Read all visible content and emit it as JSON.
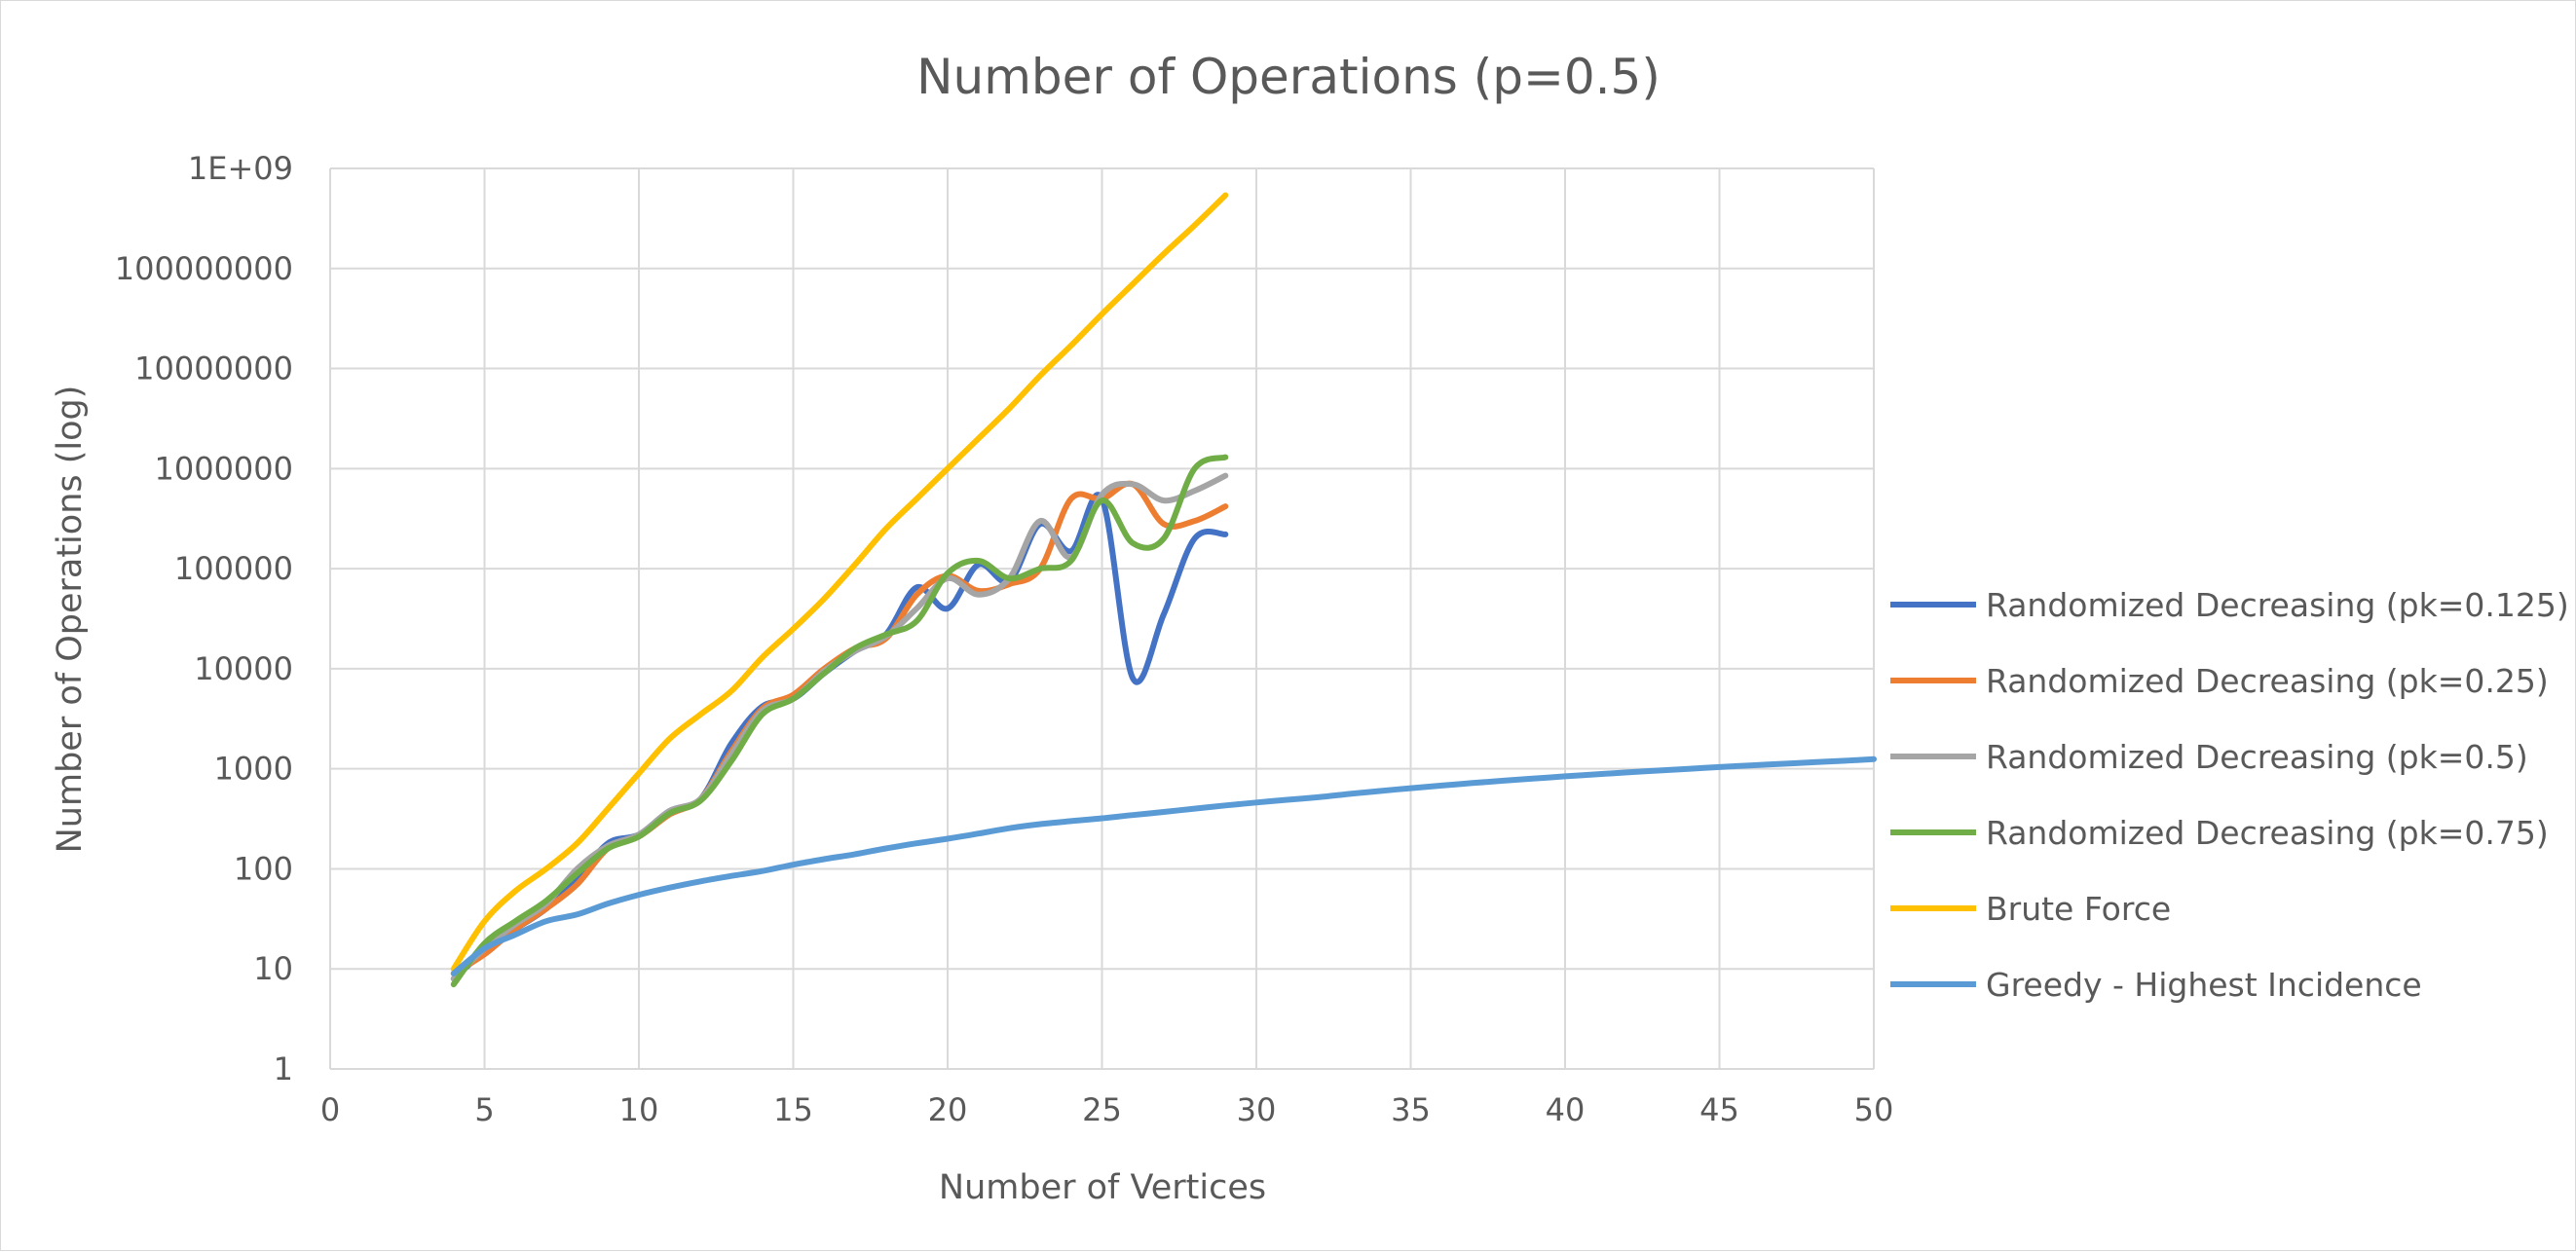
{
  "chart_data": {
    "type": "line",
    "title": "Number of Operations (p=0.5)",
    "xlabel": "Number of Vertices",
    "ylabel": "Number of Operations (log)",
    "xlim": [
      0,
      50
    ],
    "ylim": [
      1,
      1000000000
    ],
    "y_scale": "log",
    "grid": true,
    "legend_position": "right",
    "x_ticks": [
      "0",
      "5",
      "10",
      "15",
      "20",
      "25",
      "30",
      "35",
      "40",
      "45",
      "50"
    ],
    "y_ticks": [
      "1",
      "10",
      "100",
      "1000",
      "10000",
      "100000",
      "1000000",
      "10000000",
      "100000000",
      "1E+09"
    ],
    "series": [
      {
        "name": "Randomized Decreasing (pk=0.125)",
        "color": "#4472C4",
        "points": [
          [
            4,
            8
          ],
          [
            5,
            15
          ],
          [
            6,
            25
          ],
          [
            7,
            40
          ],
          [
            8,
            80
          ],
          [
            9,
            180
          ],
          [
            10,
            220
          ],
          [
            11,
            380
          ],
          [
            12,
            500
          ],
          [
            13,
            1800
          ],
          [
            14,
            4200
          ],
          [
            15,
            5000
          ],
          [
            16,
            9000
          ],
          [
            17,
            15000
          ],
          [
            18,
            22000
          ],
          [
            19,
            65000
          ],
          [
            20,
            40000
          ],
          [
            21,
            110000
          ],
          [
            22,
            75000
          ],
          [
            23,
            280000
          ],
          [
            24,
            150000
          ],
          [
            25,
            500000
          ],
          [
            26,
            8000
          ],
          [
            27,
            35000
          ],
          [
            28,
            200000
          ],
          [
            29,
            220000
          ]
        ]
      },
      {
        "name": "Randomized Decreasing (pk=0.25)",
        "color": "#ED7D31",
        "points": [
          [
            4,
            9
          ],
          [
            5,
            14
          ],
          [
            6,
            25
          ],
          [
            7,
            40
          ],
          [
            8,
            70
          ],
          [
            9,
            160
          ],
          [
            10,
            210
          ],
          [
            11,
            350
          ],
          [
            12,
            500
          ],
          [
            13,
            1500
          ],
          [
            14,
            4000
          ],
          [
            15,
            5500
          ],
          [
            16,
            10000
          ],
          [
            17,
            16000
          ],
          [
            18,
            20000
          ],
          [
            19,
            55000
          ],
          [
            20,
            85000
          ],
          [
            21,
            60000
          ],
          [
            22,
            70000
          ],
          [
            23,
            100000
          ],
          [
            24,
            500000
          ],
          [
            25,
            500000
          ],
          [
            26,
            700000
          ],
          [
            27,
            280000
          ],
          [
            28,
            300000
          ],
          [
            29,
            420000
          ]
        ]
      },
      {
        "name": "Randomized Decreasing (pk=0.5)",
        "color": "#A5A5A5",
        "points": [
          [
            4,
            8
          ],
          [
            5,
            16
          ],
          [
            6,
            28
          ],
          [
            7,
            45
          ],
          [
            8,
            100
          ],
          [
            9,
            170
          ],
          [
            10,
            220
          ],
          [
            11,
            380
          ],
          [
            12,
            500
          ],
          [
            13,
            1400
          ],
          [
            14,
            3800
          ],
          [
            15,
            5000
          ],
          [
            16,
            9500
          ],
          [
            17,
            15000
          ],
          [
            18,
            21000
          ],
          [
            19,
            40000
          ],
          [
            20,
            80000
          ],
          [
            21,
            55000
          ],
          [
            22,
            80000
          ],
          [
            23,
            300000
          ],
          [
            24,
            130000
          ],
          [
            25,
            550000
          ],
          [
            26,
            700000
          ],
          [
            27,
            480000
          ],
          [
            28,
            600000
          ],
          [
            29,
            850000
          ]
        ]
      },
      {
        "name": "Randomized Decreasing (pk=0.75)",
        "color": "#70AD47",
        "points": [
          [
            4,
            7
          ],
          [
            5,
            18
          ],
          [
            6,
            30
          ],
          [
            7,
            48
          ],
          [
            8,
            90
          ],
          [
            9,
            160
          ],
          [
            10,
            210
          ],
          [
            11,
            360
          ],
          [
            12,
            480
          ],
          [
            13,
            1200
          ],
          [
            14,
            3500
          ],
          [
            15,
            5000
          ],
          [
            16,
            9000
          ],
          [
            17,
            16000
          ],
          [
            18,
            22000
          ],
          [
            19,
            30000
          ],
          [
            20,
            90000
          ],
          [
            21,
            120000
          ],
          [
            22,
            80000
          ],
          [
            23,
            100000
          ],
          [
            24,
            120000
          ],
          [
            25,
            480000
          ],
          [
            26,
            180000
          ],
          [
            27,
            200000
          ],
          [
            28,
            1000000
          ],
          [
            29,
            1300000
          ]
        ]
      },
      {
        "name": "Brute Force",
        "color": "#FFC000",
        "points": [
          [
            4,
            10
          ],
          [
            5,
            30
          ],
          [
            6,
            60
          ],
          [
            7,
            100
          ],
          [
            8,
            180
          ],
          [
            9,
            400
          ],
          [
            10,
            900
          ],
          [
            11,
            2000
          ],
          [
            12,
            3500
          ],
          [
            13,
            6000
          ],
          [
            14,
            13000
          ],
          [
            15,
            25000
          ],
          [
            16,
            50000
          ],
          [
            17,
            110000
          ],
          [
            18,
            250000
          ],
          [
            19,
            500000
          ],
          [
            20,
            1000000
          ],
          [
            21,
            2000000
          ],
          [
            22,
            4000000
          ],
          [
            23,
            8500000
          ],
          [
            24,
            17000000
          ],
          [
            25,
            35000000
          ],
          [
            26,
            70000000
          ],
          [
            27,
            140000000
          ],
          [
            28,
            270000000
          ],
          [
            29,
            540000000
          ]
        ]
      },
      {
        "name": "Greedy - Highest Incidence",
        "color": "#5B9BD5",
        "points": [
          [
            4,
            9
          ],
          [
            5,
            16
          ],
          [
            6,
            22
          ],
          [
            7,
            30
          ],
          [
            8,
            35
          ],
          [
            9,
            45
          ],
          [
            10,
            55
          ],
          [
            11,
            65
          ],
          [
            12,
            75
          ],
          [
            13,
            85
          ],
          [
            14,
            95
          ],
          [
            15,
            110
          ],
          [
            16,
            125
          ],
          [
            17,
            140
          ],
          [
            18,
            160
          ],
          [
            19,
            180
          ],
          [
            20,
            200
          ],
          [
            21,
            225
          ],
          [
            22,
            255
          ],
          [
            23,
            280
          ],
          [
            24,
            300
          ],
          [
            25,
            320
          ],
          [
            26,
            345
          ],
          [
            27,
            370
          ],
          [
            28,
            400
          ],
          [
            29,
            430
          ],
          [
            30,
            460
          ],
          [
            31,
            490
          ],
          [
            32,
            520
          ],
          [
            33,
            560
          ],
          [
            34,
            600
          ],
          [
            35,
            640
          ],
          [
            36,
            680
          ],
          [
            37,
            720
          ],
          [
            38,
            760
          ],
          [
            39,
            800
          ],
          [
            40,
            840
          ],
          [
            41,
            880
          ],
          [
            42,
            920
          ],
          [
            43,
            960
          ],
          [
            44,
            1000
          ],
          [
            45,
            1040
          ],
          [
            46,
            1080
          ],
          [
            47,
            1120
          ],
          [
            48,
            1160
          ],
          [
            49,
            1200
          ],
          [
            50,
            1250
          ]
        ]
      }
    ]
  }
}
